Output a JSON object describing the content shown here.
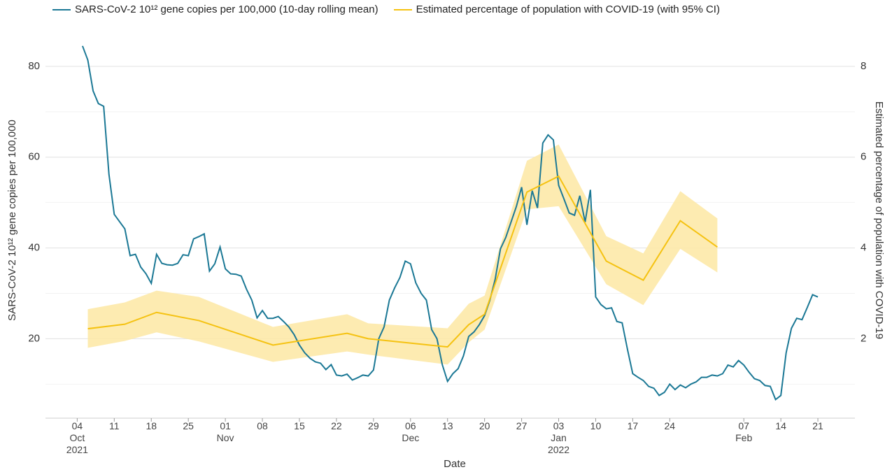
{
  "chart_data": {
    "type": "line",
    "xlabel": "Date",
    "ylabel": "SARS-CoV-2 10¹² gene copies per 100,000",
    "y2label": "Estimated percentage of population with COVID-19",
    "xlim": [
      "2021-09-28",
      "2022-02-28"
    ],
    "xticks": [
      {
        "value": "2021-10-04",
        "label": "04\nOct\n2021"
      },
      {
        "value": "2021-10-11",
        "label": "11"
      },
      {
        "value": "2021-10-18",
        "label": "18"
      },
      {
        "value": "2021-10-25",
        "label": "25"
      },
      {
        "value": "2021-11-01",
        "label": "01\nNov"
      },
      {
        "value": "2021-11-08",
        "label": "08"
      },
      {
        "value": "2021-11-15",
        "label": "15"
      },
      {
        "value": "2021-11-22",
        "label": "22"
      },
      {
        "value": "2021-11-29",
        "label": "29"
      },
      {
        "value": "2021-12-06",
        "label": "06\nDec"
      },
      {
        "value": "2021-12-13",
        "label": "13"
      },
      {
        "value": "2021-12-20",
        "label": "20"
      },
      {
        "value": "2021-12-27",
        "label": "27"
      },
      {
        "value": "2022-01-03",
        "label": "03\nJan\n2022"
      },
      {
        "value": "2022-01-10",
        "label": "10"
      },
      {
        "value": "2022-01-17",
        "label": "17"
      },
      {
        "value": "2022-01-24",
        "label": "24"
      },
      {
        "value": "2022-02-07",
        "label": "07\nFeb"
      },
      {
        "value": "2022-02-14",
        "label": "14"
      },
      {
        "value": "2022-02-21",
        "label": "21"
      }
    ],
    "ylim": [
      2.5,
      90
    ],
    "yticks": [
      20,
      40,
      60,
      80
    ],
    "y2lim": [
      0.25,
      9
    ],
    "y2ticks": [
      2,
      4,
      6,
      8
    ],
    "y2minorticks": [
      1,
      3,
      5,
      7
    ],
    "grid": true,
    "series": [
      {
        "name": "SARS-CoV-2 10¹² gene copies per 100,000 (10-day rolling mean)",
        "color": "#1b7895",
        "axis": "y",
        "x": [
          "2021-10-05",
          "2021-10-06",
          "2021-10-07",
          "2021-10-08",
          "2021-10-09",
          "2021-10-10",
          "2021-10-11",
          "2021-10-12",
          "2021-10-13",
          "2021-10-14",
          "2021-10-15",
          "2021-10-16",
          "2021-10-17",
          "2021-10-18",
          "2021-10-19",
          "2021-10-20",
          "2021-10-21",
          "2021-10-22",
          "2021-10-23",
          "2021-10-24",
          "2021-10-25",
          "2021-10-26",
          "2021-10-27",
          "2021-10-28",
          "2021-10-29",
          "2021-10-30",
          "2021-10-31",
          "2021-11-01",
          "2021-11-02",
          "2021-11-03",
          "2021-11-04",
          "2021-11-05",
          "2021-11-06",
          "2021-11-07",
          "2021-11-08",
          "2021-11-09",
          "2021-11-10",
          "2021-11-11",
          "2021-11-12",
          "2021-11-13",
          "2021-11-14",
          "2021-11-15",
          "2021-11-16",
          "2021-11-17",
          "2021-11-18",
          "2021-11-19",
          "2021-11-20",
          "2021-11-21",
          "2021-11-22",
          "2021-11-23",
          "2021-11-24",
          "2021-11-25",
          "2021-11-26",
          "2021-11-27",
          "2021-11-28",
          "2021-11-29",
          "2021-11-30",
          "2021-12-01",
          "2021-12-02",
          "2021-12-03",
          "2021-12-04",
          "2021-12-05",
          "2021-12-06",
          "2021-12-07",
          "2021-12-08",
          "2021-12-09",
          "2021-12-10",
          "2021-12-11",
          "2021-12-12",
          "2021-12-13",
          "2021-12-14",
          "2021-12-15",
          "2021-12-16",
          "2021-12-17",
          "2021-12-18",
          "2021-12-19",
          "2021-12-20",
          "2021-12-21",
          "2021-12-22",
          "2021-12-23",
          "2021-12-24",
          "2021-12-25",
          "2021-12-26",
          "2021-12-27",
          "2021-12-28",
          "2021-12-29",
          "2021-12-30",
          "2021-12-31",
          "2022-01-01",
          "2022-01-02",
          "2022-01-03",
          "2022-01-04",
          "2022-01-05",
          "2022-01-06",
          "2022-01-07",
          "2022-01-08",
          "2022-01-09",
          "2022-01-10",
          "2022-01-11",
          "2022-01-12",
          "2022-01-13",
          "2022-01-14",
          "2022-01-15",
          "2022-01-16",
          "2022-01-17",
          "2022-01-18",
          "2022-01-19",
          "2022-01-20",
          "2022-01-21",
          "2022-01-22",
          "2022-01-23",
          "2022-01-24",
          "2022-01-25",
          "2022-01-26",
          "2022-01-27",
          "2022-01-28",
          "2022-01-29",
          "2022-01-30",
          "2022-01-31",
          "2022-02-01",
          "2022-02-02",
          "2022-02-03",
          "2022-02-04",
          "2022-02-05",
          "2022-02-06",
          "2022-02-07",
          "2022-02-08",
          "2022-02-09",
          "2022-02-10",
          "2022-02-11",
          "2022-02-12",
          "2022-02-13",
          "2022-02-14",
          "2022-02-15",
          "2022-02-16",
          "2022-02-17",
          "2022-02-18",
          "2022-02-19",
          "2022-02-20",
          "2022-02-21"
        ],
        "values": [
          84.5,
          81.4,
          74.6,
          71.8,
          71.2,
          56.2,
          47.4,
          45.8,
          44.2,
          38.3,
          38.6,
          35.8,
          34.3,
          32.2,
          38.6,
          36.6,
          36.3,
          36.2,
          36.6,
          38.5,
          38.3,
          42.0,
          42.5,
          43.1,
          34.9,
          36.5,
          40.2,
          35.4,
          34.3,
          34.2,
          33.8,
          30.9,
          28.5,
          24.6,
          26.2,
          24.5,
          24.5,
          24.9,
          23.8,
          22.6,
          20.9,
          18.6,
          16.9,
          15.7,
          14.9,
          14.6,
          13.2,
          14.3,
          12.0,
          11.8,
          12.2,
          10.9,
          11.4,
          12.0,
          11.8,
          13.1,
          20.0,
          22.6,
          28.5,
          31.2,
          33.5,
          37.1,
          36.5,
          32.3,
          30.0,
          28.5,
          22.0,
          20.0,
          14.3,
          10.6,
          12.3,
          13.4,
          16.2,
          20.5,
          21.5,
          23.1,
          25.1,
          28.5,
          33.1,
          39.8,
          42.3,
          45.7,
          49.1,
          53.4,
          45.1,
          52.6,
          48.8,
          63.1,
          64.9,
          63.8,
          53.8,
          50.8,
          47.7,
          47.2,
          51.5,
          45.7,
          52.8,
          29.2,
          27.5,
          26.6,
          26.8,
          23.8,
          23.5,
          17.7,
          12.3,
          11.5,
          10.8,
          9.5,
          9.1,
          7.5,
          8.2,
          10.0,
          8.8,
          9.8,
          9.2,
          10.0,
          10.5,
          11.5,
          11.5,
          12.0,
          11.8,
          12.3,
          14.2,
          13.8,
          15.2,
          14.2,
          12.6,
          11.2,
          10.8,
          9.7,
          9.5,
          6.6,
          7.5,
          16.9,
          22.3,
          24.5,
          24.2,
          26.9,
          29.7,
          29.2
        ]
      },
      {
        "name": "Estimated percentage of population with COVID-19 (with 95% CI)",
        "color": "#f5c211",
        "band_color": "#fde9a8",
        "axis": "y2",
        "x": [
          "2021-10-06",
          "2021-10-13",
          "2021-10-19",
          "2021-10-27",
          "2021-11-10",
          "2021-11-24",
          "2021-11-28",
          "2021-12-13",
          "2021-12-17",
          "2021-12-20",
          "2021-12-28",
          "2022-01-03",
          "2022-01-12",
          "2022-01-19",
          "2022-01-26",
          "2022-02-02"
        ],
        "values": [
          2.22,
          2.32,
          2.58,
          2.4,
          1.86,
          2.12,
          2.0,
          1.82,
          2.31,
          2.54,
          5.23,
          5.58,
          3.71,
          3.29,
          4.6,
          4.02
        ],
        "lower": [
          1.8,
          1.95,
          2.14,
          1.94,
          1.49,
          1.72,
          1.65,
          1.43,
          1.92,
          2.2,
          4.85,
          4.92,
          3.2,
          2.74,
          3.98,
          3.46
        ],
        "upper": [
          2.65,
          2.8,
          3.06,
          2.92,
          2.26,
          2.54,
          2.34,
          2.23,
          2.77,
          2.95,
          5.92,
          6.28,
          4.26,
          3.88,
          5.25,
          4.65
        ]
      }
    ]
  }
}
